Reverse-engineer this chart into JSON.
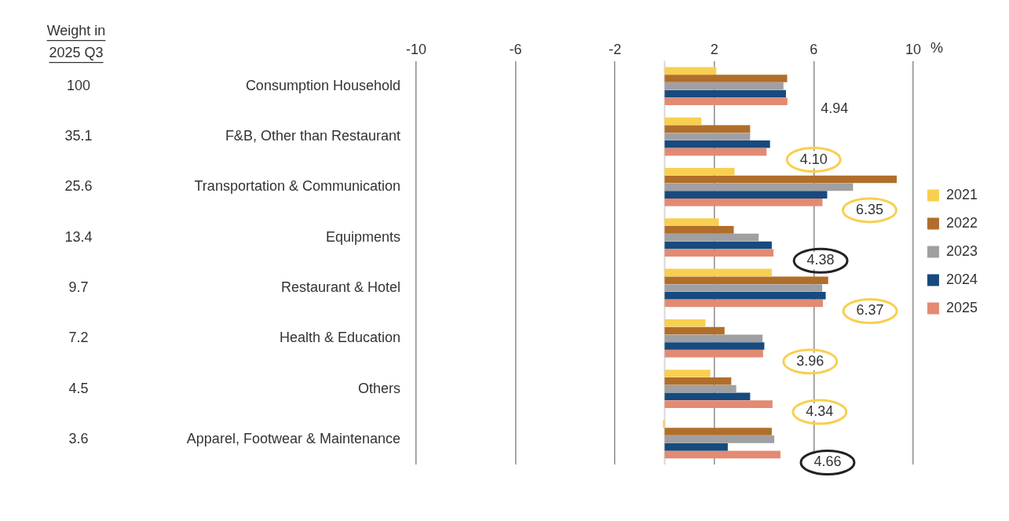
{
  "chart_data": {
    "type": "bar",
    "orientation": "horizontal",
    "xlabel": "%",
    "categories": [
      "Consumption Household",
      "F&B, Other than Restaurant",
      "Transportation & Communication",
      "Equipments",
      "Restaurant & Hotel",
      "Health & Education",
      "Others",
      "Apparel, Footwear & Maintenance"
    ],
    "series": [
      {
        "name": "2021",
        "color": "#f8cf4f",
        "values": [
          2.08,
          1.48,
          2.81,
          2.18,
          4.31,
          1.64,
          1.84,
          -0.07
        ]
      },
      {
        "name": "2022",
        "color": "#b06e2a",
        "values": [
          4.93,
          3.44,
          9.34,
          2.78,
          6.58,
          2.41,
          2.68,
          4.31
        ]
      },
      {
        "name": "2023",
        "color": "#a0a0a3",
        "values": [
          4.78,
          3.44,
          7.58,
          3.78,
          6.34,
          3.94,
          2.88,
          4.41
        ]
      },
      {
        "name": "2024",
        "color": "#174a7e",
        "values": [
          4.88,
          4.24,
          6.54,
          4.31,
          6.48,
          4.01,
          3.44,
          2.54
        ]
      },
      {
        "name": "2025",
        "color": "#e38a72",
        "values": [
          4.94,
          4.1,
          6.35,
          4.38,
          6.37,
          3.96,
          4.34,
          4.66
        ],
        "value_labels": [
          "4.94",
          "4.10",
          "6.35",
          "4.38",
          "6.37",
          "3.96",
          "4.34",
          "4.66"
        ]
      }
    ],
    "xlim": [
      -10,
      10
    ],
    "xticks": [
      -10,
      -6,
      -2,
      2,
      6,
      10
    ],
    "grid": "x",
    "legend": "right",
    "annotations": [
      "Weight in 2025 Q3",
      "100",
      "35.1",
      "25.6",
      "13.4",
      "9.7",
      "7.2",
      "4.5",
      "3.6"
    ]
  }
}
